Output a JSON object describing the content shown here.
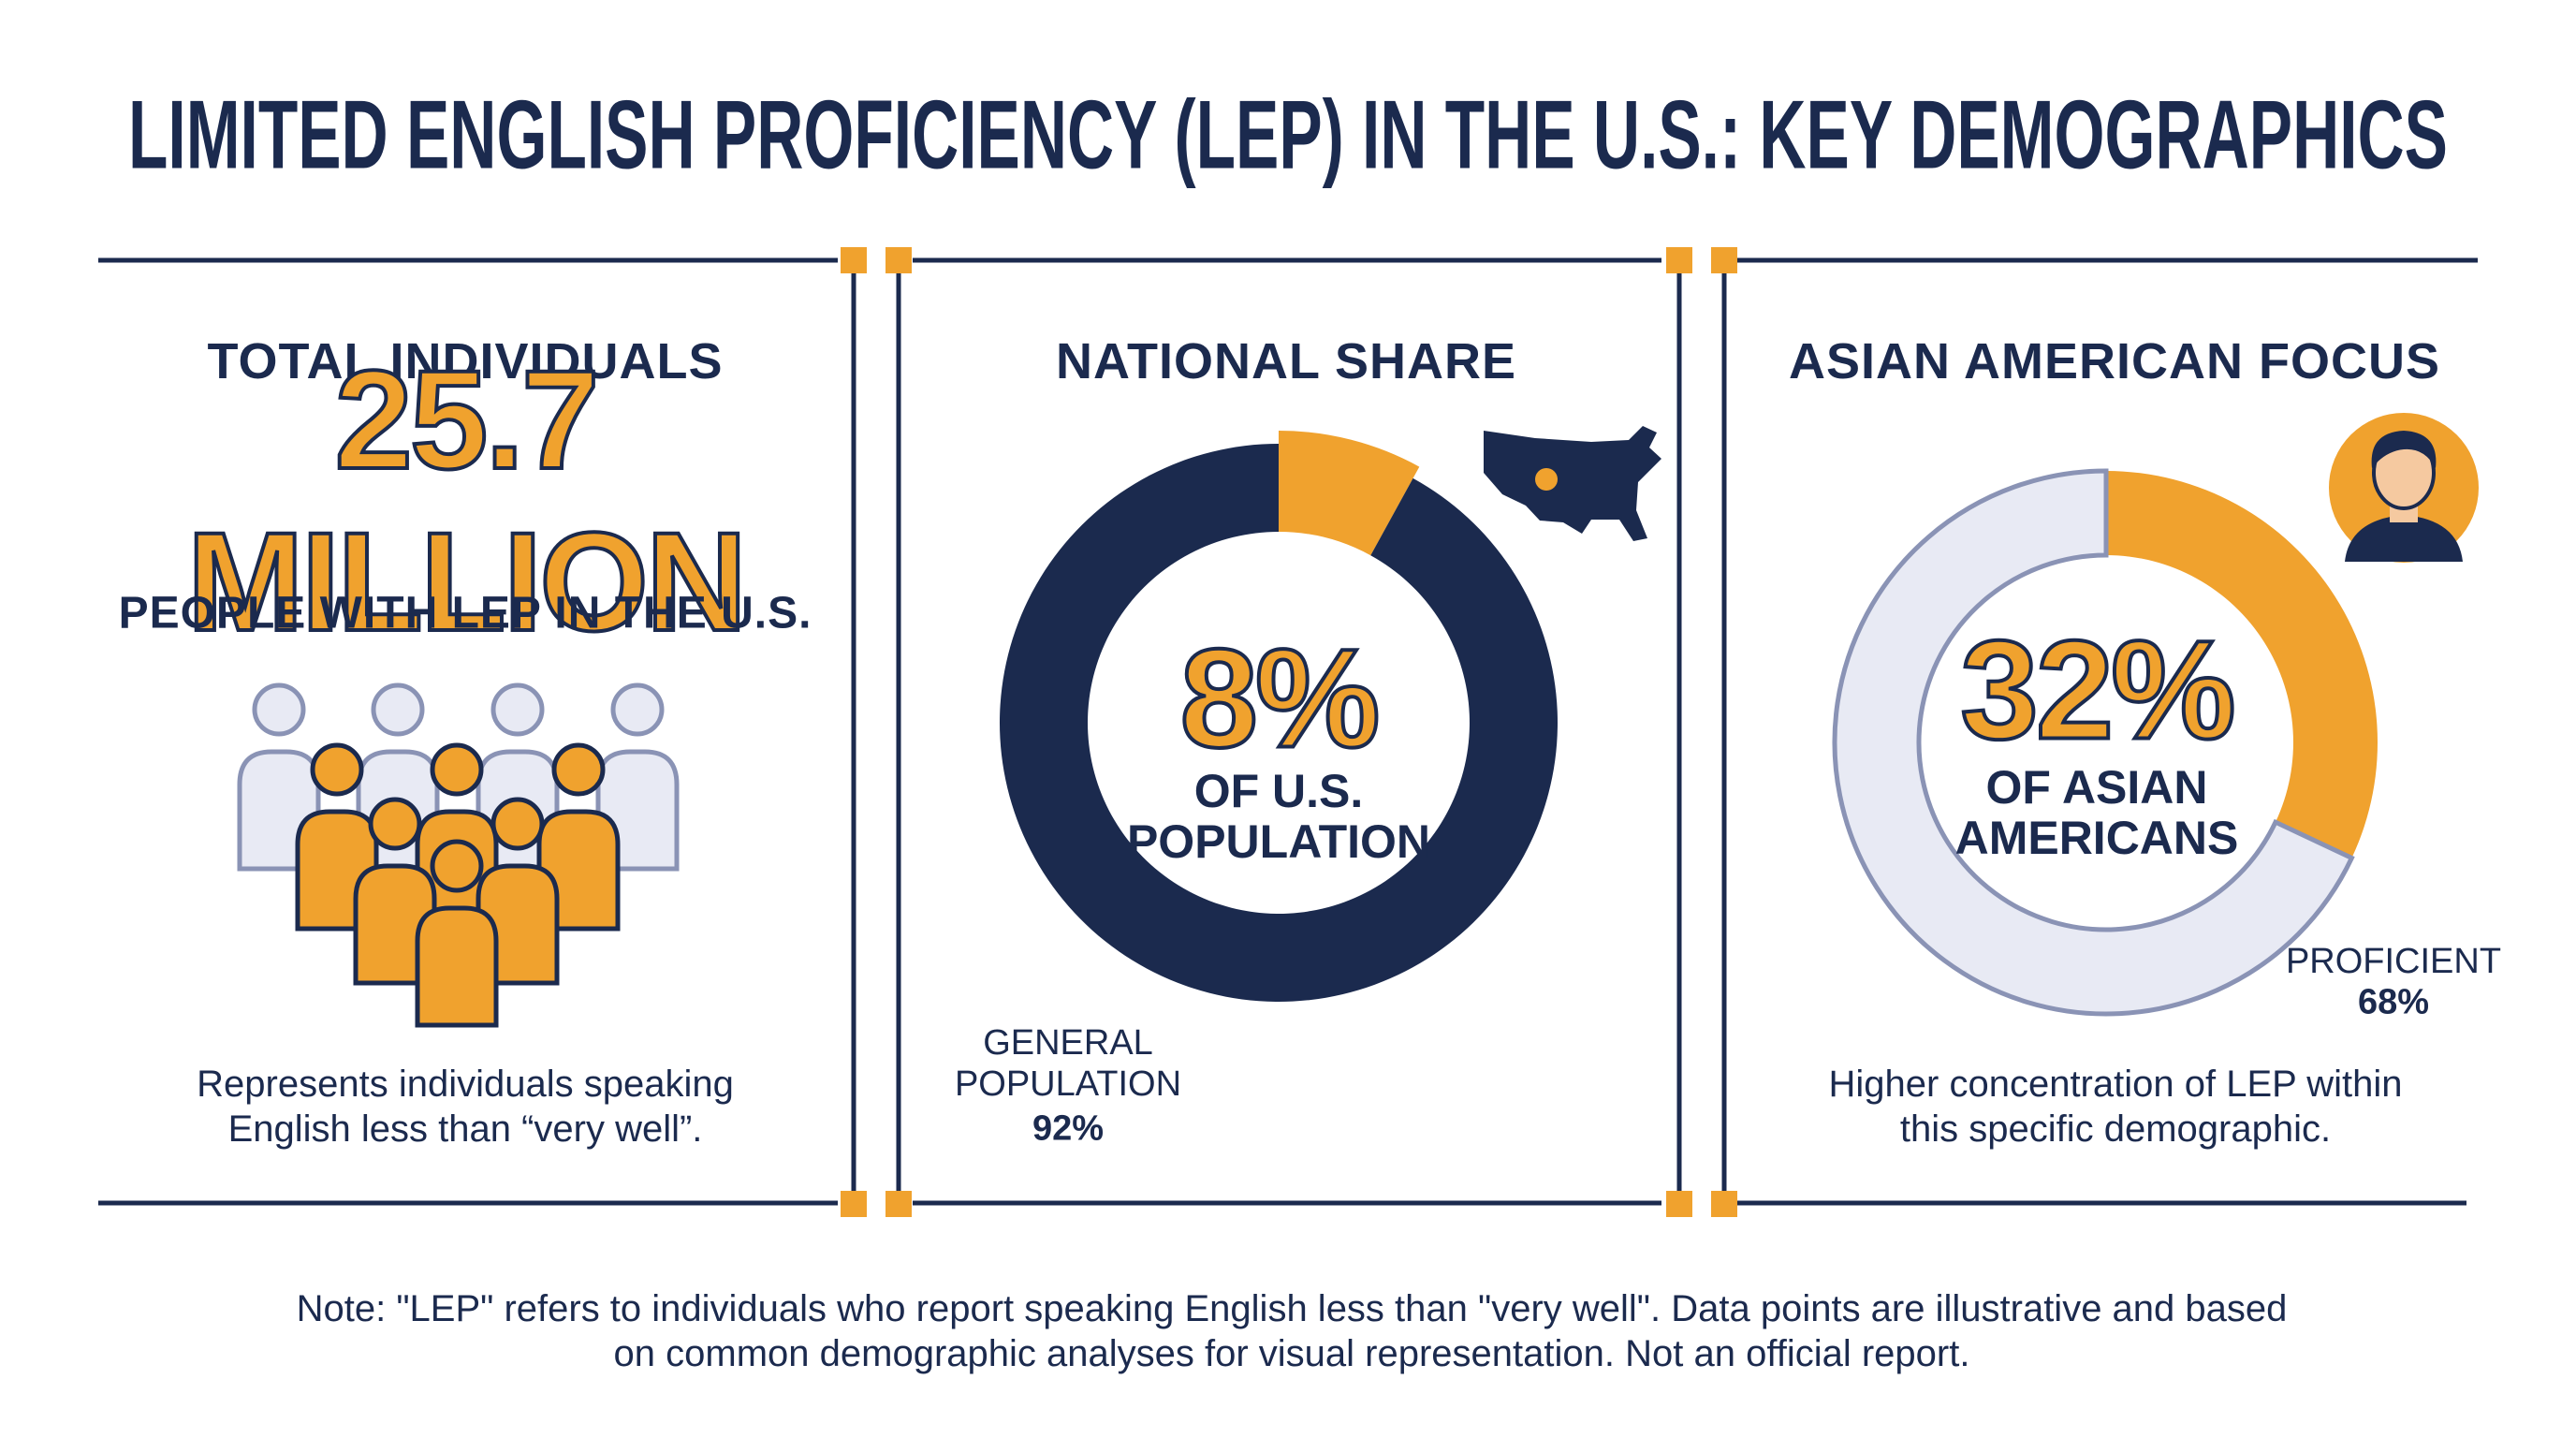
{
  "title": "LIMITED ENGLISH PROFICIENCY (LEP) IN THE U.S.: KEY DEMOGRAPHICS",
  "panels": [
    {
      "heading": "TOTAL INDIVIDUALS",
      "big_value": "25.7 MILLION",
      "subheading": "PEOPLE WITH LEP IN THE U.S.",
      "caption": "Represents individuals speaking English less than “very well”."
    }
  ],
  "chart_data": [
    {
      "type": "donut",
      "title": "NATIONAL SHARE",
      "categories": [
        "OF U.S. POPULATION",
        "GENERAL POPULATION"
      ],
      "values": [
        8,
        92
      ],
      "value_labels": [
        "8%",
        "92%"
      ],
      "colors": [
        "#f0a22e",
        "#1b2a4e"
      ]
    },
    {
      "type": "donut",
      "title": "ASIAN AMERICAN FOCUS",
      "categories": [
        "OF ASIAN AMERICANS",
        "PROFICIENT"
      ],
      "values": [
        32,
        68
      ],
      "value_labels": [
        "32%",
        "68%"
      ],
      "colors": [
        "#f0a22e",
        "#e8eaf4"
      ],
      "caption": "Higher concentration of LEP within this specific demographic."
    }
  ],
  "note": "Note: \"LEP\" refers to individuals who report speaking English less than \"very well\". Data points are illustrative and based on common demographic analyses for visual representation. Not an official report."
}
